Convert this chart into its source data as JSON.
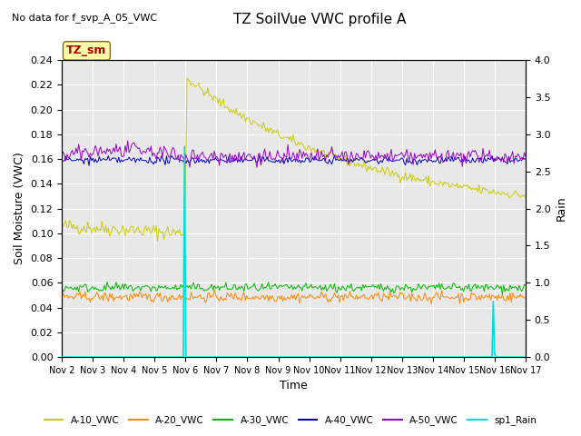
{
  "title": "TZ SoilVue VWC profile A",
  "subtitle": "No data for f_svp_A_05_VWC",
  "xlabel": "Time",
  "ylabel_left": "Soil Moisture (VWC)",
  "ylabel_right": "Rain",
  "xlim_days": [
    2,
    17
  ],
  "ylim_left": [
    0.0,
    0.24
  ],
  "ylim_right": [
    0.0,
    4.0
  ],
  "background_color": "#e8e8e8",
  "fig_facecolor": "#ffffff",
  "series_colors": {
    "A10": "#cccc00",
    "A20": "#ff8800",
    "A30": "#00bb00",
    "A40": "#0000bb",
    "A50": "#9900cc",
    "Rain": "#00dddd"
  },
  "legend_entries": [
    "A-10_VWC",
    "A-20_VWC",
    "A-30_VWC",
    "A-40_VWC",
    "A-50_VWC",
    "sp1_Rain"
  ],
  "annotation_box": {
    "text": "TZ_sm",
    "facecolor": "#ffffaa",
    "edgecolor": "#886600",
    "textcolor": "#aa0000"
  },
  "xtick_vals": [
    2,
    3,
    4,
    5,
    6,
    7,
    8,
    9,
    10,
    11,
    12,
    13,
    14,
    15,
    16,
    17
  ],
  "yticks_left": [
    0.0,
    0.02,
    0.04,
    0.06,
    0.08,
    0.1,
    0.12,
    0.14,
    0.16,
    0.18,
    0.2,
    0.22,
    0.24
  ],
  "yticks_right": [
    0.0,
    0.5,
    1.0,
    1.5,
    2.0,
    2.5,
    3.0,
    3.5,
    4.0
  ]
}
